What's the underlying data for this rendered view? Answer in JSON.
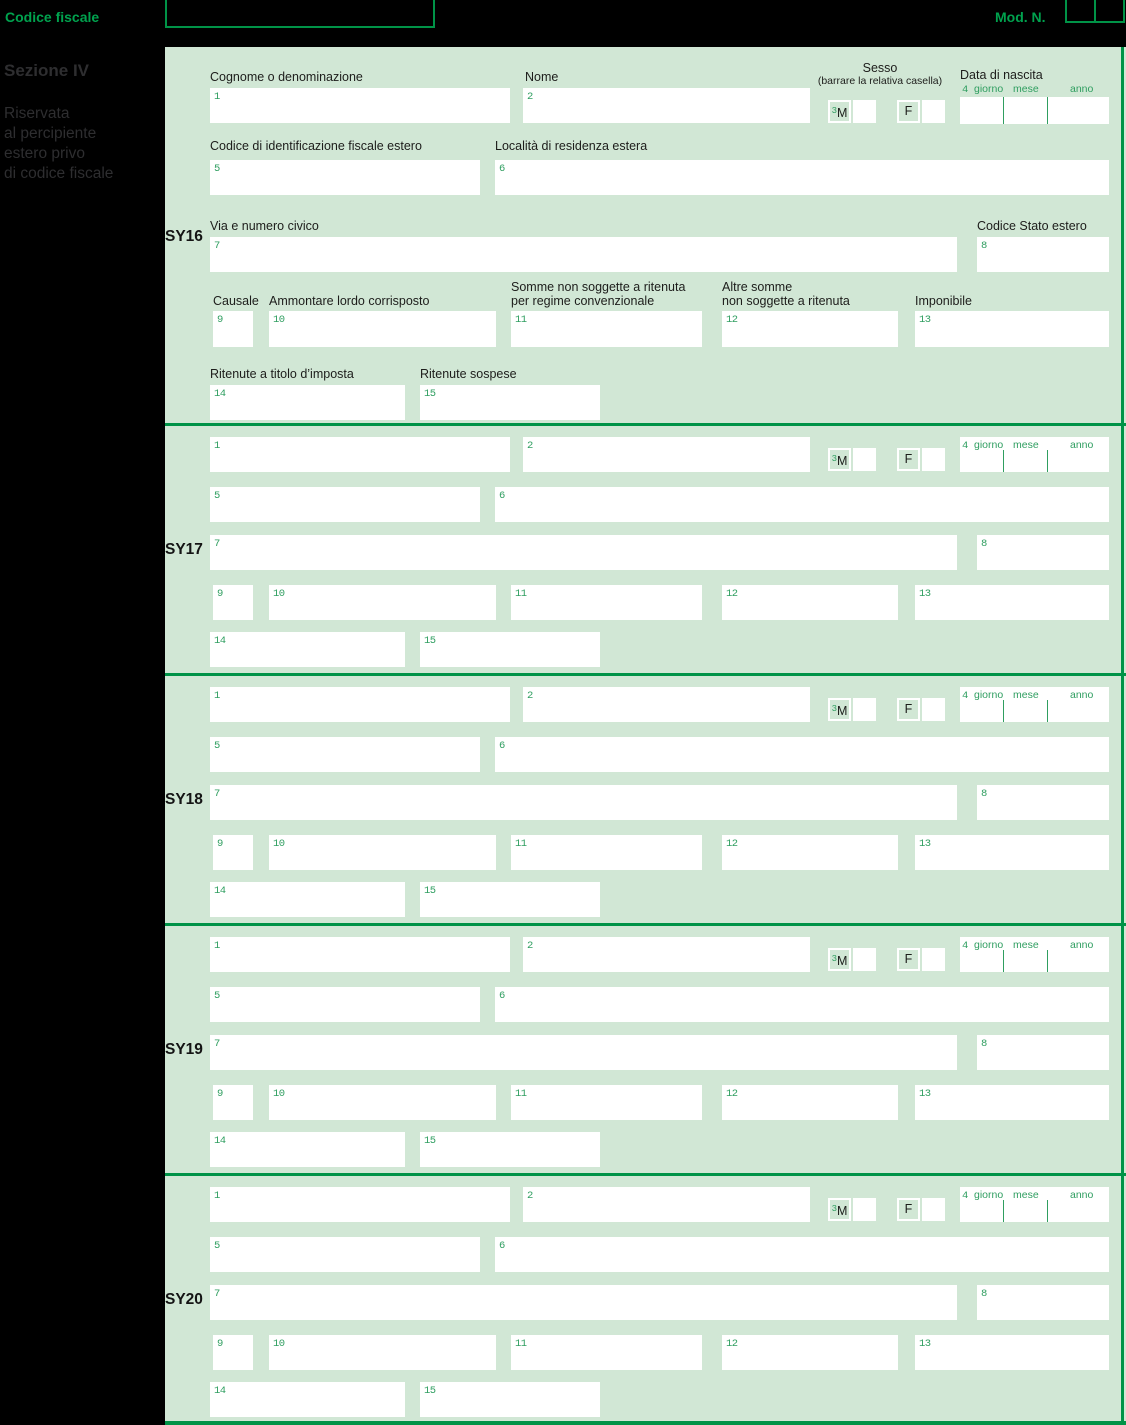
{
  "header": {
    "codice_fiscale_label": "Codice fiscale",
    "mod_n_label": "Mod. N."
  },
  "sidebar": {
    "section_title": "Sezione IV",
    "section_subtitle_lines": [
      "Riservata",
      "al percipiente",
      "estero privo",
      "di codice fiscale"
    ]
  },
  "form": {
    "sections": [
      {
        "code": "SY16"
      },
      {
        "code": "SY17"
      },
      {
        "code": "SY18"
      },
      {
        "code": "SY19"
      },
      {
        "code": "SY20"
      }
    ],
    "field_numbers": [
      "1",
      "2",
      "3",
      "4",
      "5",
      "6",
      "7",
      "8",
      "9",
      "10",
      "11",
      "12",
      "13",
      "14",
      "15"
    ],
    "labels": {
      "f1": "Cognome o denominazione",
      "f2": "Nome",
      "sesso": "Sesso",
      "sesso_note": "(barrare la relativa casella)",
      "m": "M",
      "f": "F",
      "data_nascita": "Data di nascita",
      "giorno": "giorno",
      "mese": "mese",
      "anno": "anno",
      "f5": "Codice di identificazione fiscale estero",
      "f6": "Località di residenza estera",
      "f7": "Via e numero civico",
      "f8": "Codice Stato estero",
      "f9": "Causale",
      "f10": "Ammontare lordo corrisposto",
      "f11_line1": "Somme non soggette a ritenuta",
      "f11_line2": "per regime convenzionale",
      "f12_line1": "Altre somme",
      "f12_line2": "non soggette a ritenuta",
      "f13": "Imponibile",
      "f14": "Ritenute a titolo d’imposta",
      "f15": "Ritenute sospese"
    }
  },
  "colors": {
    "page_background": "#000000",
    "form_background": "#d1e7d5",
    "line_green": "#009347",
    "field_number_green": "#2f9e60",
    "header_text_green": "#00a24e",
    "label_text": "#1d1d1b"
  }
}
